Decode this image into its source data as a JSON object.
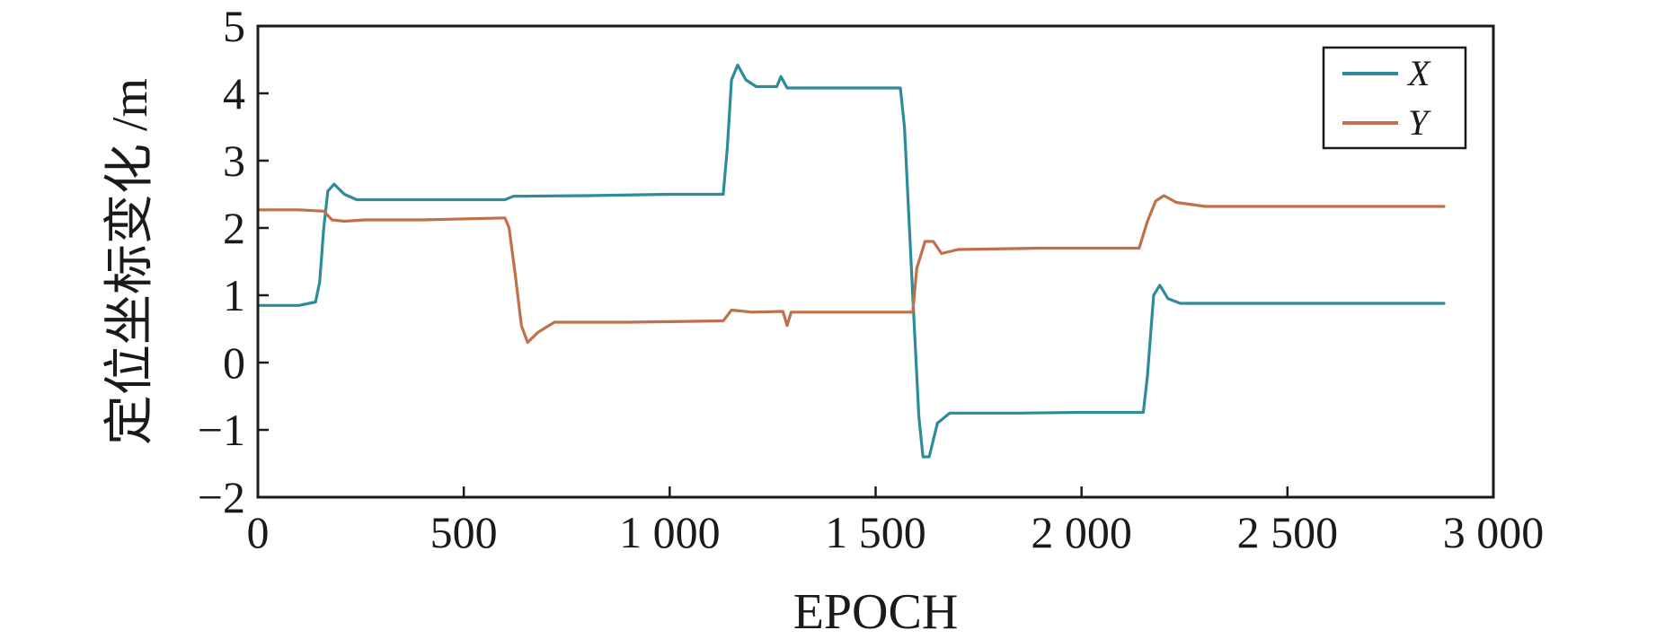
{
  "chart_data": {
    "type": "line",
    "xlabel": "EPOCH",
    "ylabel": "定位坐标变化 /m",
    "xlim": [
      0,
      3000
    ],
    "ylim": [
      -2,
      5
    ],
    "xticks": [
      0,
      500,
      1000,
      1500,
      2000,
      2500,
      3000
    ],
    "xtick_labels": [
      "0",
      "500",
      "1 000",
      "1 500",
      "2 000",
      "2 500",
      "3 000"
    ],
    "yticks": [
      -2,
      -1,
      0,
      1,
      2,
      3,
      4,
      5
    ],
    "ytick_labels": [
      "−2",
      "−1",
      "0",
      "1",
      "2",
      "3",
      "4",
      "5"
    ],
    "grid": false,
    "legend_position": "top-right",
    "series": [
      {
        "name": "X",
        "color": "#2e8b9a",
        "points": [
          [
            0,
            0.85
          ],
          [
            100,
            0.85
          ],
          [
            140,
            0.9
          ],
          [
            150,
            1.2
          ],
          [
            160,
            2.0
          ],
          [
            170,
            2.55
          ],
          [
            185,
            2.65
          ],
          [
            210,
            2.5
          ],
          [
            240,
            2.42
          ],
          [
            400,
            2.42
          ],
          [
            600,
            2.42
          ],
          [
            620,
            2.47
          ],
          [
            800,
            2.48
          ],
          [
            1000,
            2.5
          ],
          [
            1130,
            2.5
          ],
          [
            1140,
            3.2
          ],
          [
            1150,
            4.2
          ],
          [
            1165,
            4.42
          ],
          [
            1185,
            4.2
          ],
          [
            1210,
            4.1
          ],
          [
            1260,
            4.1
          ],
          [
            1270,
            4.25
          ],
          [
            1285,
            4.08
          ],
          [
            1400,
            4.08
          ],
          [
            1560,
            4.08
          ],
          [
            1570,
            3.5
          ],
          [
            1590,
            1.0
          ],
          [
            1605,
            -0.8
          ],
          [
            1615,
            -1.4
          ],
          [
            1630,
            -1.4
          ],
          [
            1650,
            -0.9
          ],
          [
            1680,
            -0.75
          ],
          [
            1850,
            -0.75
          ],
          [
            2000,
            -0.74
          ],
          [
            2150,
            -0.74
          ],
          [
            2160,
            -0.2
          ],
          [
            2175,
            1.0
          ],
          [
            2190,
            1.15
          ],
          [
            2210,
            0.95
          ],
          [
            2240,
            0.88
          ],
          [
            2500,
            0.88
          ],
          [
            2880,
            0.88
          ]
        ]
      },
      {
        "name": "Y",
        "color": "#c0704a",
        "points": [
          [
            0,
            2.27
          ],
          [
            100,
            2.27
          ],
          [
            160,
            2.25
          ],
          [
            180,
            2.12
          ],
          [
            210,
            2.1
          ],
          [
            260,
            2.12
          ],
          [
            400,
            2.12
          ],
          [
            600,
            2.15
          ],
          [
            610,
            2.0
          ],
          [
            625,
            1.3
          ],
          [
            640,
            0.55
          ],
          [
            655,
            0.3
          ],
          [
            680,
            0.45
          ],
          [
            720,
            0.6
          ],
          [
            900,
            0.6
          ],
          [
            1130,
            0.62
          ],
          [
            1150,
            0.78
          ],
          [
            1200,
            0.75
          ],
          [
            1275,
            0.76
          ],
          [
            1285,
            0.55
          ],
          [
            1295,
            0.75
          ],
          [
            1400,
            0.75
          ],
          [
            1590,
            0.75
          ],
          [
            1600,
            1.4
          ],
          [
            1620,
            1.8
          ],
          [
            1640,
            1.8
          ],
          [
            1660,
            1.62
          ],
          [
            1700,
            1.68
          ],
          [
            1900,
            1.7
          ],
          [
            2140,
            1.7
          ],
          [
            2160,
            2.1
          ],
          [
            2180,
            2.4
          ],
          [
            2200,
            2.48
          ],
          [
            2230,
            2.38
          ],
          [
            2300,
            2.32
          ],
          [
            2600,
            2.32
          ],
          [
            2880,
            2.32
          ]
        ]
      }
    ]
  }
}
